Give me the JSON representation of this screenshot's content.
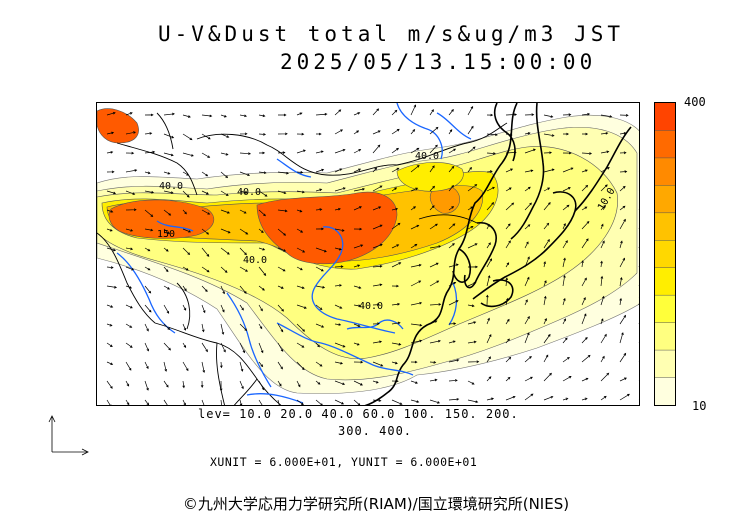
{
  "header": {
    "title": "U-V&Dust total m/s&ug/m3 JST",
    "timestamp": "2025/05/13.15:00:00"
  },
  "colorbar": {
    "max_label": "400",
    "min_label": "10",
    "colors": [
      "#ffffdf",
      "#ffffb2",
      "#ffff80",
      "#ffff3a",
      "#ffee00",
      "#ffd800",
      "#ffc200",
      "#ffa800",
      "#ff8a00",
      "#ff6a00",
      "#ff4400"
    ]
  },
  "levels": {
    "line1": "lev= 10.0 20.0 40.0 60.0 100. 150. 200.",
    "line2": "300. 400."
  },
  "units": "XUNIT = 6.000E+01, YUNIT = 6.000E+01",
  "credit": "©九州大学応用力学研究所(RIAM)/国立環境研究所(NIES)",
  "map": {
    "contour_labels": [
      "40.0",
      "40.0",
      "150",
      "40.0",
      "40.0",
      "40.0",
      "10.0"
    ],
    "colors": {
      "coast": "#000000",
      "border": "#000000",
      "river": "#1a66ff",
      "vector": "#000000"
    }
  }
}
